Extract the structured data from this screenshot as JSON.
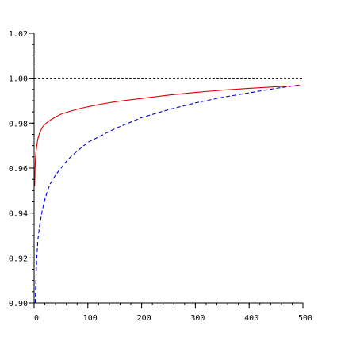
{
  "chart_data": {
    "type": "line",
    "title": "",
    "xlabel": "",
    "ylabel": "",
    "xlim": [
      0,
      500
    ],
    "ylim": [
      0.9,
      1.02
    ],
    "x_ticks": [
      0,
      100,
      200,
      300,
      400,
      500
    ],
    "x_tick_labels": [
      "0",
      "100",
      "200",
      "300",
      "400",
      "500"
    ],
    "y_ticks": [
      0.9,
      0.92,
      0.94,
      0.96,
      0.98,
      1.0,
      1.02
    ],
    "y_tick_labels": [
      "0.90",
      "0.92",
      "0.94",
      "0.96",
      "0.98",
      "1.00",
      "1.02"
    ],
    "x_minor_step": 20,
    "y_minor_step": 0.005,
    "grid": false,
    "legend": "none",
    "reference_line": {
      "y": 1.0,
      "color": "#000000",
      "style": "dashed"
    },
    "series": [
      {
        "color": "#e00000",
        "style": "solid",
        "x": [
          1,
          2,
          3,
          5,
          7,
          10,
          15,
          20,
          25,
          30,
          40,
          50,
          60,
          70,
          80,
          100,
          125,
          150,
          175,
          200,
          250,
          300,
          350,
          400,
          450,
          495
        ],
        "y": [
          0.952,
          0.962,
          0.966,
          0.97,
          0.973,
          0.9755,
          0.978,
          0.9795,
          0.9805,
          0.9813,
          0.9828,
          0.984,
          0.9848,
          0.9855,
          0.9862,
          0.9873,
          0.9885,
          0.9895,
          0.9903,
          0.991,
          0.9925,
          0.9937,
          0.9947,
          0.9955,
          0.9962,
          0.9967
        ]
      },
      {
        "color": "#0000e0",
        "style": "dashed",
        "x": [
          2,
          3,
          5,
          7,
          10,
          15,
          20,
          25,
          30,
          40,
          50,
          60,
          70,
          80,
          100,
          125,
          150,
          175,
          200,
          250,
          300,
          350,
          400,
          450,
          495
        ],
        "y": [
          0.9,
          0.908,
          0.92,
          0.928,
          0.934,
          0.941,
          0.946,
          0.95,
          0.953,
          0.957,
          0.96,
          0.963,
          0.9655,
          0.9675,
          0.9715,
          0.9745,
          0.9775,
          0.98,
          0.9825,
          0.986,
          0.989,
          0.9915,
          0.9935,
          0.9955,
          0.997
        ]
      }
    ]
  }
}
